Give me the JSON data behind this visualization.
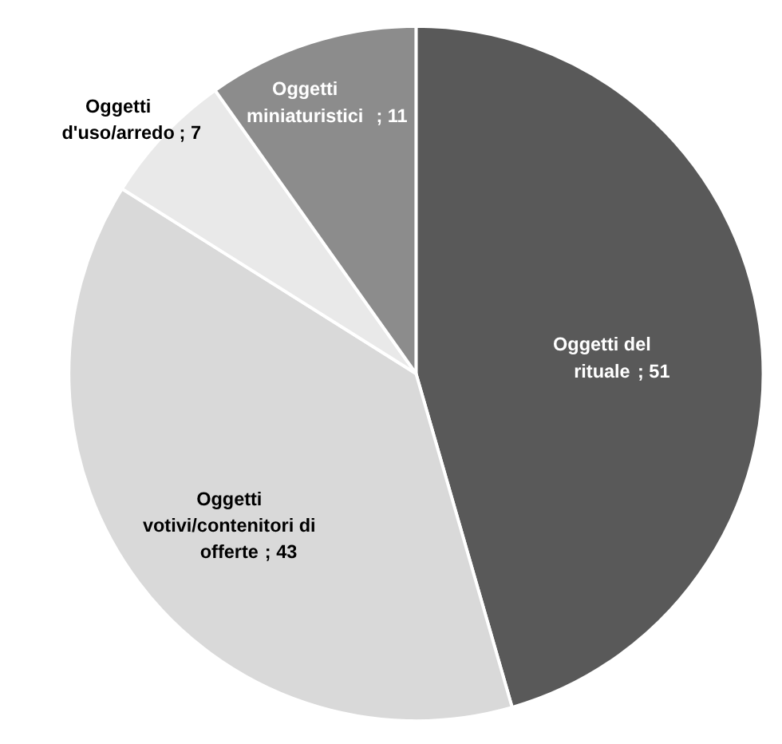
{
  "chart_data": {
    "type": "pie",
    "categories": [
      "Oggetti del rituale",
      "Oggetti votivi/contenitori di offerte",
      "Oggetti d'uso/arredo",
      "Oggetti miniaturistici"
    ],
    "values": [
      51,
      43,
      7,
      11
    ],
    "colors": [
      "#595959",
      "#d9d9d9",
      "#e9e9e9",
      "#8c8c8c"
    ],
    "value_labels": [
      "; 51",
      "; 43",
      "; 7",
      "; 11"
    ]
  }
}
